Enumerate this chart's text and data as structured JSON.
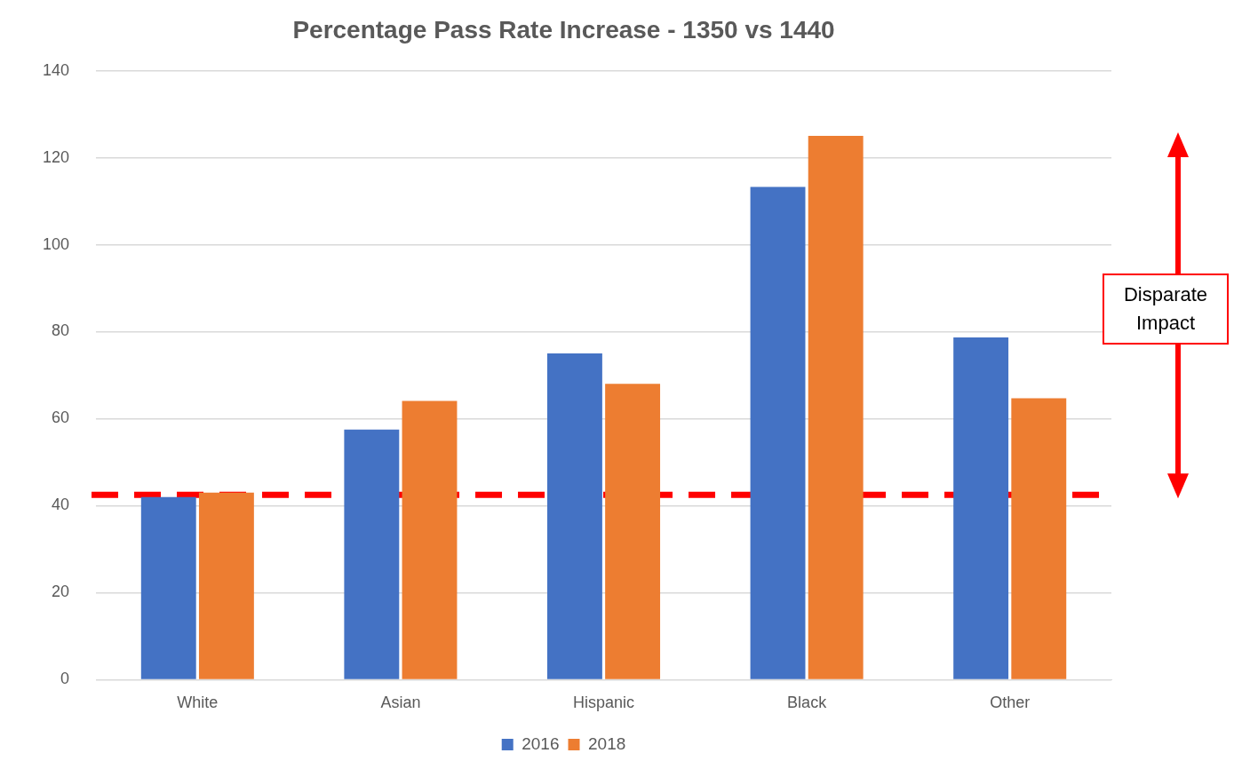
{
  "chart_data": {
    "type": "bar",
    "title": "Percentage Pass Rate Increase - 1350 vs 1440",
    "categories": [
      "White",
      "Asian",
      "Hispanic",
      "Black",
      "Other"
    ],
    "series": [
      {
        "name": "2016",
        "color": "#4472c4",
        "values": [
          42,
          57.5,
          75,
          113.3,
          78.7
        ]
      },
      {
        "name": "2018",
        "color": "#ed7d31",
        "values": [
          43,
          64.1,
          68,
          125,
          64.7
        ]
      }
    ],
    "ylim": [
      0,
      140
    ],
    "yticks": [
      0,
      20,
      40,
      60,
      80,
      100,
      120,
      140
    ],
    "grid": "y",
    "legend": "bottom",
    "ref_lines": [
      {
        "axis": "y",
        "value": 42.5,
        "color": "#ff0000",
        "line_style": "dashed"
      }
    ],
    "annotations": [
      "Disparate Impact"
    ]
  }
}
